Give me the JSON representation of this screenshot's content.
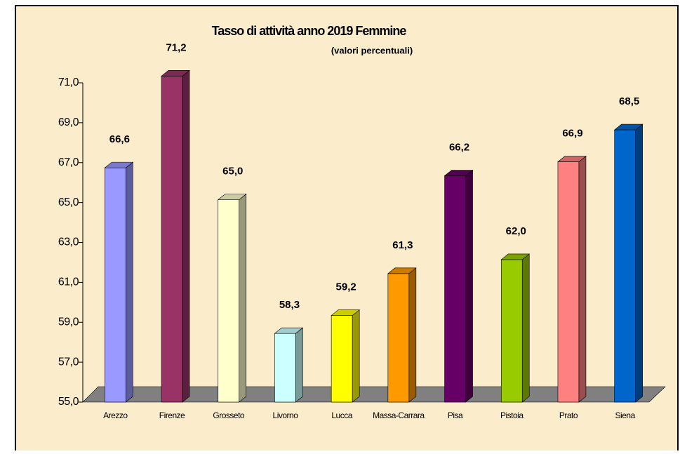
{
  "chart_data": {
    "type": "bar3d",
    "title": "Tasso di attività anno 2019 Femmine",
    "subtitle": "(valori percentuali)",
    "categories": [
      "Arezzo",
      "Firenze",
      "Grosseto",
      "Livorno",
      "Lucca",
      "Massa-Carrara",
      "Pisa",
      "Pistoia",
      "Prato",
      "Siena"
    ],
    "values": [
      66.6,
      71.2,
      65.0,
      58.3,
      59.2,
      61.3,
      66.2,
      62.0,
      66.9,
      68.5
    ],
    "value_labels": [
      "66,6",
      "71,2",
      "65,0",
      "58,3",
      "59,2",
      "61,3",
      "66,2",
      "62,0",
      "66,9",
      "68,5"
    ],
    "colors": [
      "#9999ff",
      "#993366",
      "#ffffcc",
      "#ccffff",
      "#ffff00",
      "#ff9900",
      "#660066",
      "#99cc00",
      "#ff8080",
      "#0066cc"
    ],
    "ylim": [
      55,
      71
    ],
    "yticks": [
      {
        "value": 55,
        "label": "55,0"
      },
      {
        "value": 57,
        "label": "57,0"
      },
      {
        "value": 59,
        "label": "59,0"
      },
      {
        "value": 61,
        "label": "61,0"
      },
      {
        "value": 63,
        "label": "63,0"
      },
      {
        "value": 65,
        "label": "65,0"
      },
      {
        "value": 67,
        "label": "67,0"
      },
      {
        "value": 69,
        "label": "69,0"
      },
      {
        "value": 71,
        "label": "71,0"
      }
    ]
  }
}
